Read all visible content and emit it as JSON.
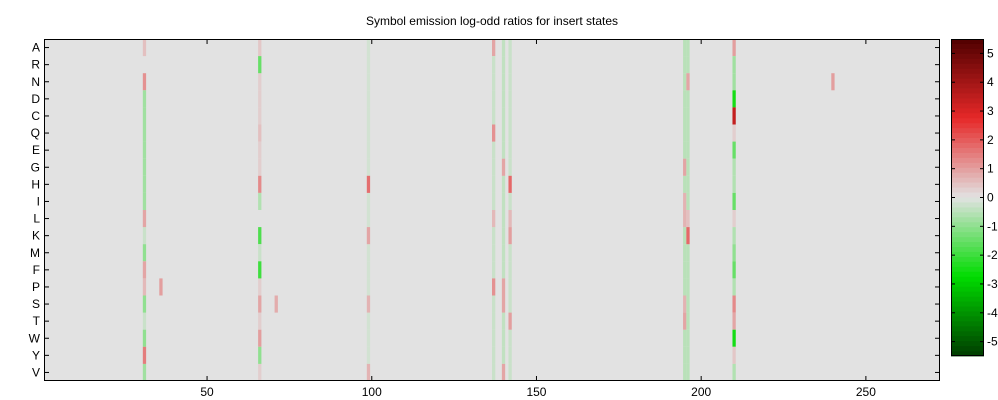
{
  "chart_data": {
    "type": "heatmap",
    "title": "Symbol emission log-odd ratios for insert states",
    "xlabel": "",
    "ylabel": "",
    "x_range": [
      1,
      272
    ],
    "x_ticks": [
      50,
      100,
      150,
      200,
      250
    ],
    "rows": [
      "A",
      "R",
      "N",
      "D",
      "C",
      "Q",
      "E",
      "G",
      "H",
      "I",
      "L",
      "K",
      "M",
      "F",
      "P",
      "S",
      "T",
      "W",
      "Y",
      "V"
    ],
    "background_color": "#e2e2e2",
    "colorbar": {
      "min": -5.5,
      "max": 5.5,
      "ticks": [
        5,
        4,
        3,
        2,
        1,
        0,
        -1,
        -2,
        -3,
        -4,
        -5
      ],
      "tick_labels": [
        "5",
        "4",
        "3",
        "2",
        "1",
        "0",
        "-1",
        "-2",
        "-3",
        "-4",
        "-5"
      ]
    },
    "cells": [
      {
        "x": 31,
        "y": "A",
        "v": 0.5
      },
      {
        "x": 31,
        "y": "N",
        "v": 1.2
      },
      {
        "x": 31,
        "y": "D",
        "v": -0.8
      },
      {
        "x": 31,
        "y": "C",
        "v": -0.8
      },
      {
        "x": 31,
        "y": "Q",
        "v": -0.8
      },
      {
        "x": 31,
        "y": "E",
        "v": -0.8
      },
      {
        "x": 31,
        "y": "G",
        "v": -0.8
      },
      {
        "x": 31,
        "y": "H",
        "v": -0.8
      },
      {
        "x": 31,
        "y": "I",
        "v": -0.8
      },
      {
        "x": 31,
        "y": "K",
        "v": -0.3
      },
      {
        "x": 31,
        "y": "T",
        "v": -0.3
      },
      {
        "x": 31,
        "y": "V",
        "v": -0.8
      },
      {
        "x": 31,
        "y": "L",
        "v": 0.9
      },
      {
        "x": 31,
        "y": "M",
        "v": -1.0
      },
      {
        "x": 31,
        "y": "F",
        "v": 0.9
      },
      {
        "x": 31,
        "y": "P",
        "v": 0.6
      },
      {
        "x": 31,
        "y": "S",
        "v": -1.0
      },
      {
        "x": 31,
        "y": "W",
        "v": -1.0
      },
      {
        "x": 31,
        "y": "Y",
        "v": 1.5
      },
      {
        "x": 36,
        "y": "P",
        "v": 1.0
      },
      {
        "x": 66,
        "y": "A",
        "v": 0.4
      },
      {
        "x": 66,
        "y": "N",
        "v": 0.3
      },
      {
        "x": 66,
        "y": "D",
        "v": 0.3
      },
      {
        "x": 66,
        "y": "C",
        "v": 0.3
      },
      {
        "x": 66,
        "y": "Q",
        "v": 0.5
      },
      {
        "x": 66,
        "y": "E",
        "v": 0.3
      },
      {
        "x": 66,
        "y": "G",
        "v": 0.3
      },
      {
        "x": 66,
        "y": "P",
        "v": 0.3
      },
      {
        "x": 66,
        "y": "T",
        "v": 0.3
      },
      {
        "x": 66,
        "y": "V",
        "v": 0.3
      },
      {
        "x": 66,
        "y": "R",
        "v": -1.5
      },
      {
        "x": 66,
        "y": "H",
        "v": 1.3
      },
      {
        "x": 66,
        "y": "I",
        "v": -0.6
      },
      {
        "x": 66,
        "y": "K",
        "v": -1.8
      },
      {
        "x": 66,
        "y": "M",
        "v": -0.3
      },
      {
        "x": 66,
        "y": "F",
        "v": -2.0
      },
      {
        "x": 66,
        "y": "S",
        "v": 0.9
      },
      {
        "x": 66,
        "y": "W",
        "v": 1.0
      },
      {
        "x": 66,
        "y": "Y",
        "v": -1.0
      },
      {
        "x": 71,
        "y": "S",
        "v": 0.8
      },
      {
        "x": 99,
        "y": "A",
        "v": -0.2
      },
      {
        "x": 99,
        "y": "R",
        "v": -0.2
      },
      {
        "x": 99,
        "y": "N",
        "v": -0.2
      },
      {
        "x": 99,
        "y": "D",
        "v": -0.2
      },
      {
        "x": 99,
        "y": "C",
        "v": -0.2
      },
      {
        "x": 99,
        "y": "Q",
        "v": -0.2
      },
      {
        "x": 99,
        "y": "E",
        "v": -0.2
      },
      {
        "x": 99,
        "y": "G",
        "v": -0.2
      },
      {
        "x": 99,
        "y": "I",
        "v": -0.2
      },
      {
        "x": 99,
        "y": "L",
        "v": -0.2
      },
      {
        "x": 99,
        "y": "M",
        "v": -0.2
      },
      {
        "x": 99,
        "y": "F",
        "v": -0.2
      },
      {
        "x": 99,
        "y": "P",
        "v": -0.2
      },
      {
        "x": 99,
        "y": "T",
        "v": -0.2
      },
      {
        "x": 99,
        "y": "W",
        "v": -0.2
      },
      {
        "x": 99,
        "y": "Y",
        "v": -0.2
      },
      {
        "x": 99,
        "y": "H",
        "v": 1.7
      },
      {
        "x": 99,
        "y": "K",
        "v": 0.9
      },
      {
        "x": 99,
        "y": "S",
        "v": 0.7
      },
      {
        "x": 99,
        "y": "V",
        "v": 0.7
      },
      {
        "x": 137,
        "y": "A",
        "v": 0.9
      },
      {
        "x": 137,
        "y": "R",
        "v": -0.3
      },
      {
        "x": 137,
        "y": "N",
        "v": -0.3
      },
      {
        "x": 137,
        "y": "D",
        "v": -0.3
      },
      {
        "x": 137,
        "y": "C",
        "v": -0.3
      },
      {
        "x": 137,
        "y": "E",
        "v": -0.3
      },
      {
        "x": 137,
        "y": "G",
        "v": -0.3
      },
      {
        "x": 137,
        "y": "H",
        "v": -0.3
      },
      {
        "x": 137,
        "y": "I",
        "v": -0.3
      },
      {
        "x": 137,
        "y": "K",
        "v": -0.3
      },
      {
        "x": 137,
        "y": "M",
        "v": -0.3
      },
      {
        "x": 137,
        "y": "F",
        "v": -0.3
      },
      {
        "x": 137,
        "y": "S",
        "v": -0.3
      },
      {
        "x": 137,
        "y": "T",
        "v": -0.3
      },
      {
        "x": 137,
        "y": "W",
        "v": -0.3
      },
      {
        "x": 137,
        "y": "Y",
        "v": -0.3
      },
      {
        "x": 137,
        "y": "V",
        "v": -0.3
      },
      {
        "x": 137,
        "y": "Q",
        "v": 1.2
      },
      {
        "x": 137,
        "y": "L",
        "v": 0.6
      },
      {
        "x": 137,
        "y": "P",
        "v": 1.2
      },
      {
        "x": 140,
        "y": "A",
        "v": -0.4
      },
      {
        "x": 140,
        "y": "R",
        "v": -0.4
      },
      {
        "x": 140,
        "y": "N",
        "v": -0.4
      },
      {
        "x": 140,
        "y": "D",
        "v": -0.4
      },
      {
        "x": 140,
        "y": "C",
        "v": -0.4
      },
      {
        "x": 140,
        "y": "Q",
        "v": -0.4
      },
      {
        "x": 140,
        "y": "E",
        "v": -0.4
      },
      {
        "x": 140,
        "y": "H",
        "v": -0.4
      },
      {
        "x": 140,
        "y": "I",
        "v": -0.4
      },
      {
        "x": 140,
        "y": "L",
        "v": -0.4
      },
      {
        "x": 140,
        "y": "K",
        "v": -0.4
      },
      {
        "x": 140,
        "y": "M",
        "v": -0.4
      },
      {
        "x": 140,
        "y": "F",
        "v": -0.4
      },
      {
        "x": 140,
        "y": "T",
        "v": -0.4
      },
      {
        "x": 140,
        "y": "W",
        "v": -0.4
      },
      {
        "x": 140,
        "y": "Y",
        "v": -0.4
      },
      {
        "x": 140,
        "y": "G",
        "v": 0.9
      },
      {
        "x": 140,
        "y": "P",
        "v": 0.9
      },
      {
        "x": 140,
        "y": "S",
        "v": 0.9
      },
      {
        "x": 140,
        "y": "V",
        "v": 0.9
      },
      {
        "x": 142,
        "y": "A",
        "v": -0.3
      },
      {
        "x": 142,
        "y": "R",
        "v": -0.3
      },
      {
        "x": 142,
        "y": "N",
        "v": -0.3
      },
      {
        "x": 142,
        "y": "D",
        "v": -0.3
      },
      {
        "x": 142,
        "y": "C",
        "v": -0.3
      },
      {
        "x": 142,
        "y": "Q",
        "v": -0.3
      },
      {
        "x": 142,
        "y": "E",
        "v": -0.3
      },
      {
        "x": 142,
        "y": "G",
        "v": -0.3
      },
      {
        "x": 142,
        "y": "I",
        "v": -0.3
      },
      {
        "x": 142,
        "y": "M",
        "v": -0.3
      },
      {
        "x": 142,
        "y": "F",
        "v": -0.3
      },
      {
        "x": 142,
        "y": "P",
        "v": -0.3
      },
      {
        "x": 142,
        "y": "S",
        "v": -0.3
      },
      {
        "x": 142,
        "y": "W",
        "v": -0.3
      },
      {
        "x": 142,
        "y": "Y",
        "v": -0.3
      },
      {
        "x": 142,
        "y": "V",
        "v": -0.3
      },
      {
        "x": 142,
        "y": "H",
        "v": 1.8
      },
      {
        "x": 142,
        "y": "L",
        "v": 0.6
      },
      {
        "x": 142,
        "y": "K",
        "v": 1.0
      },
      {
        "x": 142,
        "y": "T",
        "v": 1.0
      },
      {
        "x": 195,
        "y": "A",
        "v": -0.5
      },
      {
        "x": 195,
        "y": "R",
        "v": -0.5
      },
      {
        "x": 195,
        "y": "N",
        "v": -0.5
      },
      {
        "x": 195,
        "y": "D",
        "v": -0.5
      },
      {
        "x": 195,
        "y": "C",
        "v": -0.5
      },
      {
        "x": 195,
        "y": "Q",
        "v": -0.5
      },
      {
        "x": 195,
        "y": "E",
        "v": -0.5
      },
      {
        "x": 195,
        "y": "H",
        "v": -0.5
      },
      {
        "x": 195,
        "y": "K",
        "v": -0.5
      },
      {
        "x": 195,
        "y": "M",
        "v": -0.5
      },
      {
        "x": 195,
        "y": "F",
        "v": -0.5
      },
      {
        "x": 195,
        "y": "P",
        "v": -0.5
      },
      {
        "x": 195,
        "y": "W",
        "v": -0.5
      },
      {
        "x": 195,
        "y": "Y",
        "v": -0.5
      },
      {
        "x": 195,
        "y": "V",
        "v": -0.5
      },
      {
        "x": 195,
        "y": "G",
        "v": 0.9
      },
      {
        "x": 195,
        "y": "I",
        "v": 0.7
      },
      {
        "x": 195,
        "y": "L",
        "v": 0.7
      },
      {
        "x": 195,
        "y": "S",
        "v": 0.7
      },
      {
        "x": 195,
        "y": "T",
        "v": 0.9
      },
      {
        "x": 196,
        "y": "A",
        "v": -0.5
      },
      {
        "x": 196,
        "y": "R",
        "v": -0.5
      },
      {
        "x": 196,
        "y": "D",
        "v": -0.5
      },
      {
        "x": 196,
        "y": "C",
        "v": -0.5
      },
      {
        "x": 196,
        "y": "Q",
        "v": -0.5
      },
      {
        "x": 196,
        "y": "E",
        "v": -0.5
      },
      {
        "x": 196,
        "y": "G",
        "v": -0.5
      },
      {
        "x": 196,
        "y": "H",
        "v": -0.5
      },
      {
        "x": 196,
        "y": "I",
        "v": -0.5
      },
      {
        "x": 196,
        "y": "M",
        "v": -0.5
      },
      {
        "x": 196,
        "y": "F",
        "v": -0.5
      },
      {
        "x": 196,
        "y": "P",
        "v": -0.5
      },
      {
        "x": 196,
        "y": "S",
        "v": -0.5
      },
      {
        "x": 196,
        "y": "T",
        "v": -0.5
      },
      {
        "x": 196,
        "y": "W",
        "v": -0.5
      },
      {
        "x": 196,
        "y": "Y",
        "v": -0.5
      },
      {
        "x": 196,
        "y": "V",
        "v": -0.5
      },
      {
        "x": 196,
        "y": "N",
        "v": 0.9
      },
      {
        "x": 196,
        "y": "L",
        "v": 0.5
      },
      {
        "x": 196,
        "y": "K",
        "v": 1.8
      },
      {
        "x": 210,
        "y": "A",
        "v": 1.0
      },
      {
        "x": 210,
        "y": "R",
        "v": -0.8
      },
      {
        "x": 210,
        "y": "N",
        "v": -0.8
      },
      {
        "x": 210,
        "y": "D",
        "v": -2.5
      },
      {
        "x": 210,
        "y": "C",
        "v": 3.4
      },
      {
        "x": 210,
        "y": "Q",
        "v": 0.3
      },
      {
        "x": 210,
        "y": "E",
        "v": -1.5
      },
      {
        "x": 210,
        "y": "G",
        "v": -0.6
      },
      {
        "x": 210,
        "y": "H",
        "v": -0.6
      },
      {
        "x": 210,
        "y": "I",
        "v": -1.5
      },
      {
        "x": 210,
        "y": "L",
        "v": 0.3
      },
      {
        "x": 210,
        "y": "K",
        "v": -0.6
      },
      {
        "x": 210,
        "y": "M",
        "v": -1.0
      },
      {
        "x": 210,
        "y": "F",
        "v": -1.5
      },
      {
        "x": 210,
        "y": "P",
        "v": -0.6
      },
      {
        "x": 210,
        "y": "S",
        "v": 1.3
      },
      {
        "x": 210,
        "y": "T",
        "v": 0.9
      },
      {
        "x": 210,
        "y": "W",
        "v": -2.5
      },
      {
        "x": 210,
        "y": "Y",
        "v": 0.4
      },
      {
        "x": 210,
        "y": "V",
        "v": -0.6
      },
      {
        "x": 240,
        "y": "N",
        "v": 1.0
      }
    ]
  }
}
